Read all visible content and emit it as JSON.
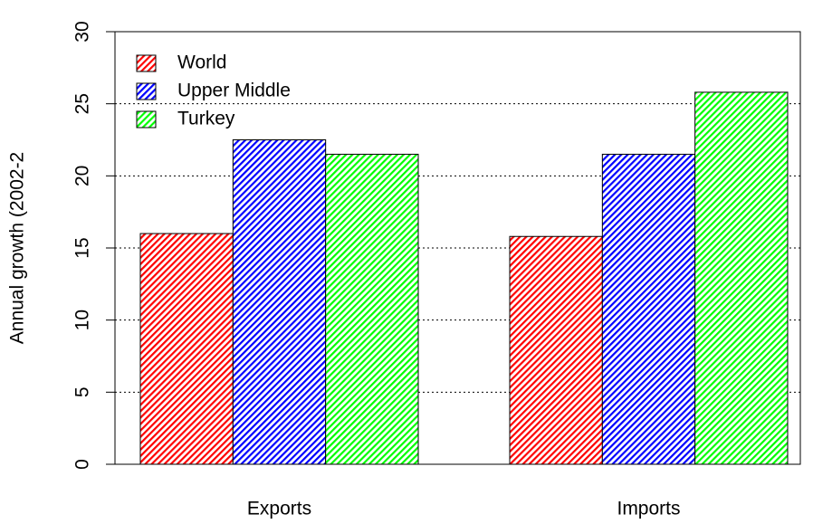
{
  "chart_data": {
    "type": "bar",
    "y_label": "Annual growth (2002-2",
    "categories": [
      "Exports",
      "Imports"
    ],
    "series": [
      {
        "name": "World",
        "color": "#ff0000",
        "values": [
          16.0,
          15.8
        ]
      },
      {
        "name": "Upper Middle",
        "color": "#0000ff",
        "values": [
          22.5,
          21.5
        ]
      },
      {
        "name": "Turkey",
        "color": "#00ff00",
        "values": [
          21.5,
          25.8
        ]
      }
    ],
    "ylim": [
      0,
      30
    ],
    "yticks": [
      0,
      5,
      10,
      15,
      20,
      25,
      30
    ],
    "grid": true,
    "legend": "top-left"
  }
}
